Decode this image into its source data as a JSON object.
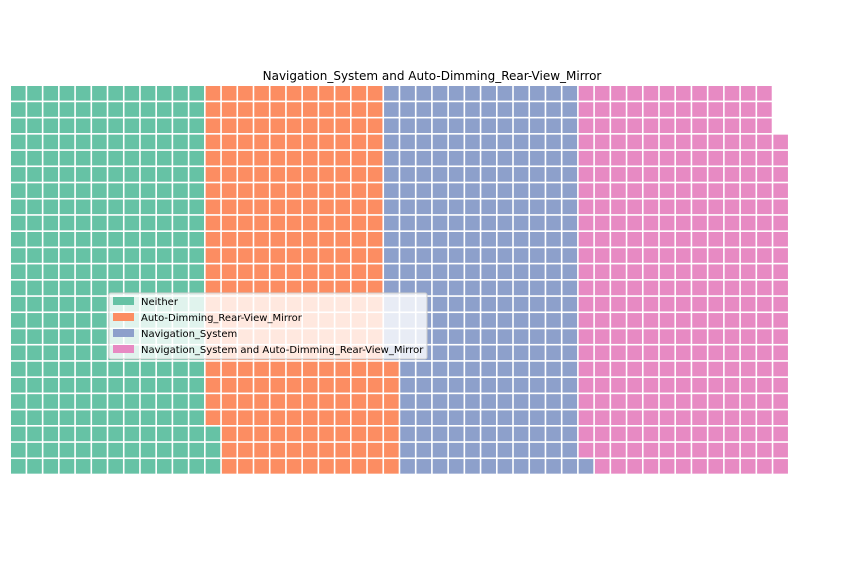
{
  "chart_data": {
    "type": "waffle",
    "title": "Navigation_System and Auto-Dimming_Rear-View_Mirror",
    "grid": {
      "rows": 24,
      "columns": 52,
      "fill_order": "column-major, bottom-to-top, left-to-right"
    },
    "categories": [
      "Neither",
      "Auto-Dimming_Rear-View_Mirror",
      "Navigation_System",
      "Navigation_System and Auto-Dimming_Rear-View_Mirror"
    ],
    "values": [
      291,
      268,
      282,
      308
    ],
    "colors": [
      "#66c2a5",
      "#fc8d62",
      "#8da0cb",
      "#e78ac3"
    ],
    "legend": {
      "placement": "center-left"
    }
  }
}
